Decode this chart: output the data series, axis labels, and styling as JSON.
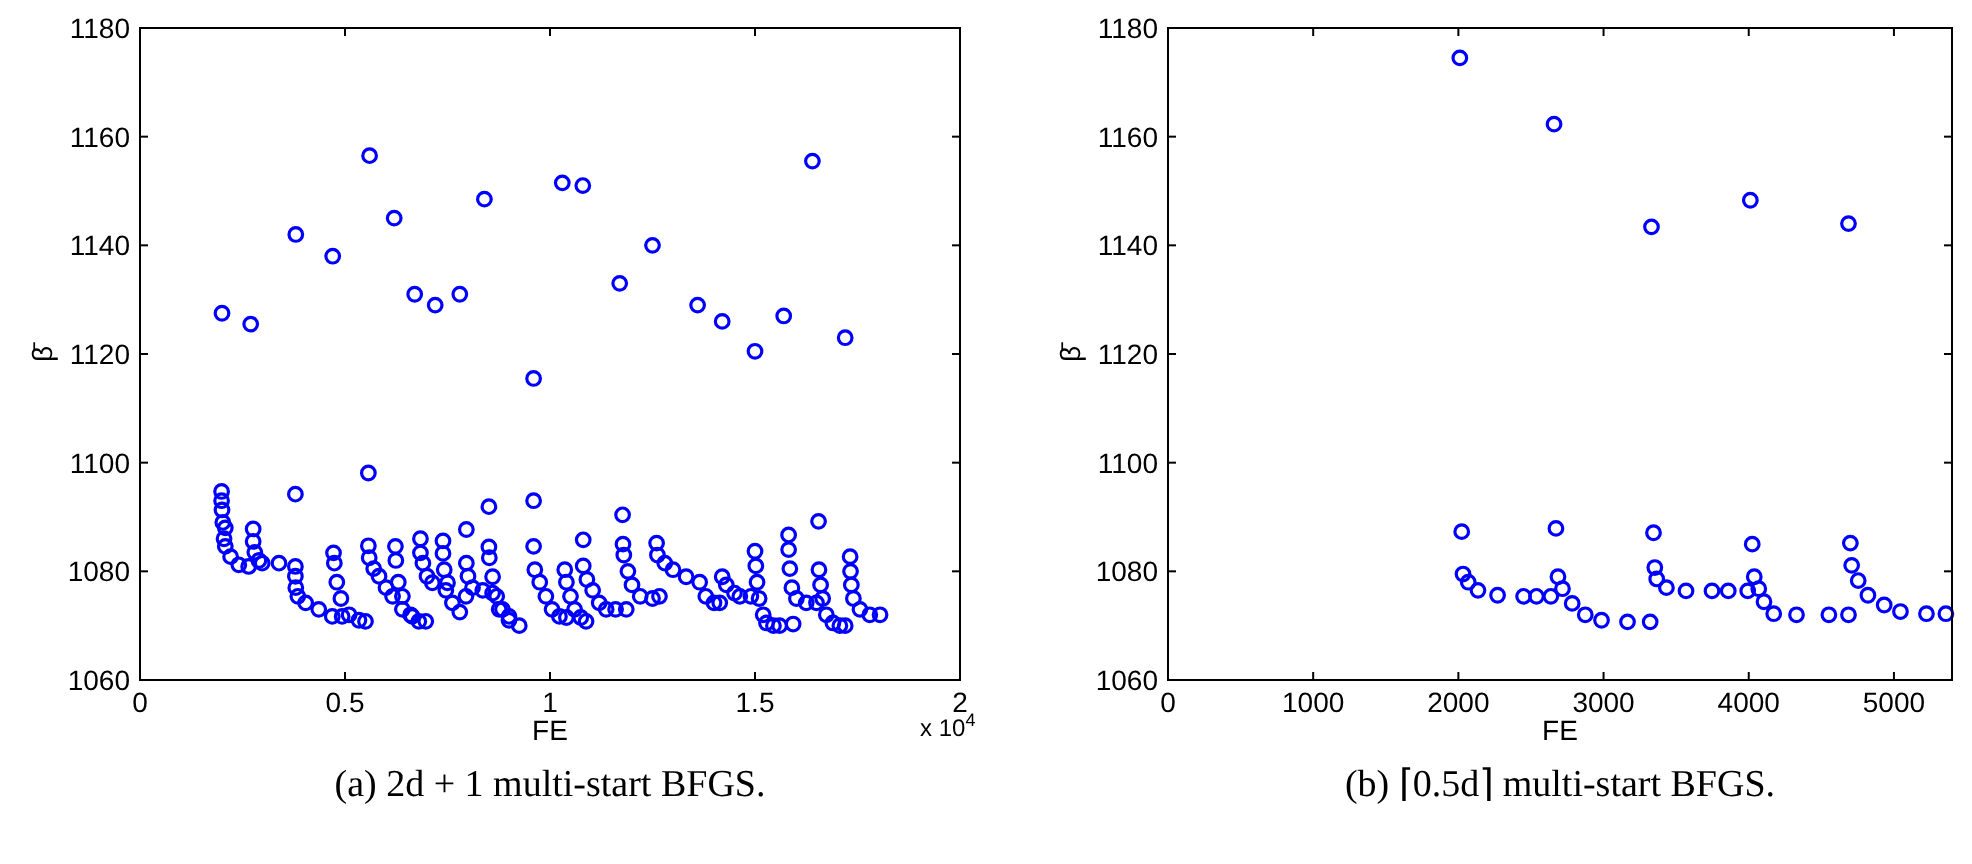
{
  "chart_data": [
    {
      "type": "scatter",
      "title": "(a) 2d + 1 multi-start BFGS.",
      "xlabel": "FE",
      "ylabel": "β̄",
      "color": "#0000ff",
      "marker": "circle",
      "xlim": [
        0,
        2
      ],
      "ylim": [
        1060,
        1180
      ],
      "xticks": [
        0,
        0.5,
        1,
        1.5,
        2
      ],
      "yticks": [
        1060,
        1080,
        1100,
        1120,
        1140,
        1160,
        1180
      ],
      "annotations": [
        "x 10$^{4}$"
      ],
      "x": [
        0.2,
        0.27,
        0.38,
        0.47,
        0.56,
        0.62,
        0.67,
        0.72,
        0.78,
        0.84,
        0.96,
        1.03,
        1.08,
        1.17,
        1.25,
        1.36,
        1.42,
        1.5,
        1.57,
        1.64,
        1.72,
        0.379,
        0.557,
        0.851,
        0.96,
        1.177,
        1.655,
        0.796,
        0.208,
        0.199,
        0.199,
        0.2,
        0.202,
        0.205,
        0.208,
        0.221,
        0.241,
        0.265,
        0.298,
        0.339,
        0.379,
        0.276,
        0.276,
        0.28,
        0.29,
        0.379,
        0.38,
        0.385,
        0.404,
        0.436,
        0.469,
        0.493,
        0.472,
        0.474,
        0.48,
        0.49,
        0.51,
        0.534,
        0.55,
        0.557,
        0.559,
        0.57,
        0.583,
        0.6,
        0.616,
        0.64,
        0.664,
        0.623,
        0.624,
        0.63,
        0.64,
        0.66,
        0.68,
        0.697,
        0.684,
        0.684,
        0.69,
        0.7,
        0.713,
        0.746,
        0.795,
        0.739,
        0.739,
        0.742,
        0.75,
        0.762,
        0.78,
        0.796,
        0.8,
        0.811,
        0.836,
        0.86,
        0.876,
        0.9,
        0.925,
        0.851,
        0.852,
        0.86,
        0.87,
        0.884,
        0.9,
        0.96,
        0.963,
        0.975,
        0.99,
        1.005,
        1.023,
        1.04,
        1.036,
        1.04,
        1.05,
        1.06,
        1.075,
        1.088,
        1.081,
        1.081,
        1.09,
        1.104,
        1.12,
        1.137,
        1.16,
        1.186,
        1.178,
        1.18,
        1.19,
        1.2,
        1.22,
        1.25,
        1.267,
        1.26,
        1.262,
        1.28,
        1.3,
        1.332,
        1.365,
        1.38,
        1.4,
        1.414,
        1.42,
        1.43,
        1.45,
        1.463,
        1.49,
        1.5,
        1.502,
        1.505,
        1.51,
        1.52,
        1.528,
        1.545,
        1.56,
        1.593,
        1.582,
        1.582,
        1.585,
        1.59,
        1.601,
        1.625,
        1.65,
        1.656,
        1.66,
        1.665,
        1.674,
        1.69,
        1.707,
        1.72,
        1.732,
        1.733,
        1.735,
        1.74,
        1.756,
        1.78,
        1.805
      ],
      "values": [
        1127.5,
        1125.5,
        1142,
        1138,
        1156.5,
        1145,
        1131,
        1129,
        1131,
        1148.5,
        1115.5,
        1151.5,
        1151,
        1133,
        1140,
        1129,
        1126,
        1120.5,
        1127,
        1155.5,
        1123,
        1094.2,
        1098.1,
        1091.9,
        1093,
        1090.4,
        1089.2,
        1087.7,
        1088,
        1094.7,
        1093,
        1091.3,
        1089,
        1086,
        1084.6,
        1082.7,
        1081.2,
        1080.9,
        1081.5,
        1081.5,
        1080.9,
        1087.8,
        1085.5,
        1083.5,
        1082,
        1079.1,
        1077,
        1075.4,
        1074.2,
        1073,
        1071.7,
        1071.7,
        1083.4,
        1081.5,
        1078,
        1075,
        1072,
        1071,
        1070.8,
        1084.7,
        1082.5,
        1080.5,
        1079.1,
        1077,
        1075.4,
        1073,
        1071.7,
        1084.6,
        1082,
        1078,
        1075.4,
        1072,
        1070.8,
        1070.8,
        1086,
        1083.4,
        1081.5,
        1079.1,
        1077.9,
        1076.5,
        1075.4,
        1085.6,
        1083.3,
        1080.3,
        1077.9,
        1074.2,
        1072.5,
        1081.5,
        1079.1,
        1077,
        1076.5,
        1076,
        1073,
        1071,
        1070,
        1084.5,
        1082.5,
        1079,
        1075.4,
        1073,
        1071.7,
        1084.6,
        1080.3,
        1078,
        1075.4,
        1073,
        1071.7,
        1071.5,
        1080.3,
        1078,
        1075.4,
        1073,
        1071.5,
        1070.8,
        1085.8,
        1081,
        1078.5,
        1076.5,
        1074.2,
        1073,
        1073,
        1073,
        1085,
        1083,
        1080,
        1077.5,
        1075.4,
        1075,
        1075.4,
        1085.2,
        1083,
        1081.5,
        1080.3,
        1079,
        1078,
        1075.4,
        1074.2,
        1074.2,
        1079,
        1077.5,
        1076,
        1075.4,
        1075.4,
        1083.7,
        1081,
        1078,
        1075,
        1072,
        1070.5,
        1070,
        1070,
        1070.3,
        1086.7,
        1084,
        1080.5,
        1077,
        1075,
        1074.2,
        1074.2,
        1080.3,
        1077.5,
        1075,
        1072,
        1070.5,
        1070,
        1070,
        1082.7,
        1080,
        1077.5,
        1075,
        1073,
        1072,
        1072
      ]
    },
    {
      "type": "scatter",
      "title": "(b) ⌈0.5d⌉ multi-start BFGS.",
      "xlabel": "FE",
      "ylabel": "β̄",
      "color": "#0000ff",
      "marker": "circle",
      "xlim": [
        0,
        5400
      ],
      "ylim": [
        1060,
        1180
      ],
      "xticks": [
        0,
        1000,
        2000,
        3000,
        4000,
        5000
      ],
      "yticks": [
        1060,
        1080,
        1100,
        1120,
        1140,
        1160,
        1180
      ],
      "x": [
        2010,
        2659,
        3330,
        4011,
        4687,
        2023,
        2672,
        3344,
        4024,
        4700,
        2032,
        2068,
        2135,
        2270,
        2449,
        2538,
        2637,
        2686,
        2717,
        2784,
        2874,
        2986,
        3165,
        3321,
        3353,
        3366,
        3433,
        3568,
        3747,
        3859,
        3993,
        4038,
        4069,
        4105,
        4172,
        4329,
        4552,
        4687,
        4709,
        4754,
        4821,
        4933,
        5045,
        5224,
        5358
      ],
      "values": [
        1174.5,
        1162.3,
        1143.4,
        1148.3,
        1144,
        1087.3,
        1087.9,
        1087.1,
        1085,
        1085.2,
        1079.5,
        1078,
        1076.5,
        1075.6,
        1075.4,
        1075.4,
        1075.4,
        1079,
        1076.8,
        1074.1,
        1072,
        1071,
        1070.7,
        1070.7,
        1080.7,
        1078.6,
        1077,
        1076.4,
        1076.4,
        1076.4,
        1076.4,
        1079,
        1076.8,
        1074.4,
        1072.2,
        1072,
        1072,
        1072,
        1081.1,
        1078.3,
        1075.6,
        1073.8,
        1072.6,
        1072.2,
        1072.2
      ]
    }
  ]
}
